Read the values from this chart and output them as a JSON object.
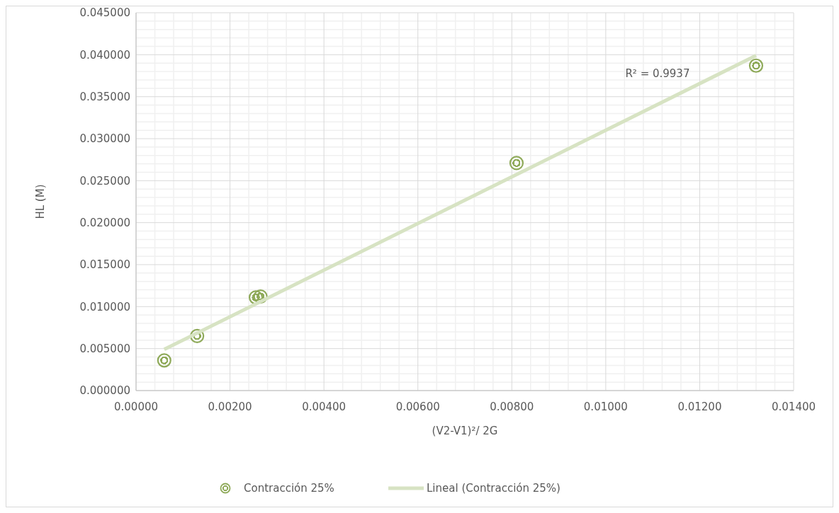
{
  "chart_data": {
    "type": "scatter",
    "xlabel": "(V2-V1)²/ 2G",
    "ylabel": "HL (M)",
    "series": [
      {
        "name": "Contracción 25%",
        "type": "scatter",
        "color": "#8faa5a",
        "marker": "circle",
        "x": [
          0.0006,
          0.0013,
          0.00255,
          0.00265,
          0.0081,
          0.0132
        ],
        "values": [
          0.0036,
          0.0065,
          0.0111,
          0.0112,
          0.0271,
          0.0387
        ]
      },
      {
        "name": "Lineal (Contracción 25%)",
        "type": "line",
        "color": "#d7e3c3",
        "line_style": "solid",
        "marker": "none",
        "x": [
          0.0006,
          0.0132
        ],
        "values": [
          0.0049,
          0.0399
        ]
      }
    ],
    "annotations": [
      "R² = 0.9937"
    ],
    "xlim": [
      0,
      0.014
    ],
    "xticks": [
      {
        "value": 0,
        "label": "0.00000"
      },
      {
        "value": 0.002,
        "label": "0.00200"
      },
      {
        "value": 0.004,
        "label": "0.00400"
      },
      {
        "value": 0.006,
        "label": "0.00600"
      },
      {
        "value": 0.008,
        "label": "0.00800"
      },
      {
        "value": 0.01,
        "label": "0.01000"
      },
      {
        "value": 0.012,
        "label": "0.01200"
      },
      {
        "value": 0.014,
        "label": "0.01400"
      }
    ],
    "ylim": [
      0,
      0.045
    ],
    "yticks": [
      {
        "value": 0,
        "label": "0.000000"
      },
      {
        "value": 0.005,
        "label": "0.005000"
      },
      {
        "value": 0.01,
        "label": "0.010000"
      },
      {
        "value": 0.015,
        "label": "0.015000"
      },
      {
        "value": 0.02,
        "label": "0.020000"
      },
      {
        "value": 0.025,
        "label": "0.025000"
      },
      {
        "value": 0.03,
        "label": "0.030000"
      },
      {
        "value": 0.035,
        "label": "0.035000"
      },
      {
        "value": 0.04,
        "label": "0.040000"
      },
      {
        "value": 0.045,
        "label": "0.045000"
      }
    ],
    "grid": true,
    "legend": "bottom"
  }
}
